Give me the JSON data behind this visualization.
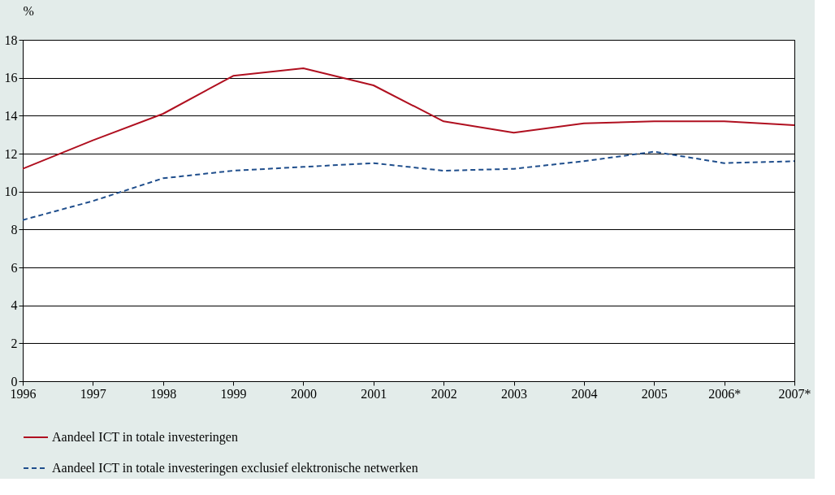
{
  "chart_data": {
    "type": "line",
    "ylabel": "%",
    "categories": [
      "1996",
      "1997",
      "1998",
      "1999",
      "2000",
      "2001",
      "2002",
      "2003",
      "2004",
      "2005",
      "2006*",
      "2007*"
    ],
    "series": [
      {
        "name": "Aandeel ICT in totale investeringen",
        "color": "#b01020",
        "line_style": "solid",
        "values": [
          11.2,
          12.7,
          14.1,
          16.1,
          16.5,
          15.6,
          13.7,
          13.1,
          13.6,
          13.7,
          13.7,
          13.5
        ]
      },
      {
        "name": "Aandeel ICT in totale investeringen exclusief elektronische netwerken",
        "color": "#1f4e8c",
        "line_style": "dashed",
        "values": [
          8.5,
          9.5,
          10.7,
          11.1,
          11.3,
          11.5,
          11.1,
          11.2,
          11.6,
          12.1,
          11.5,
          11.6
        ]
      }
    ],
    "ylim": [
      0,
      18
    ],
    "yticks": [
      0,
      2,
      4,
      6,
      8,
      10,
      12,
      14,
      16,
      18
    ],
    "grid": "y",
    "legend": "bottom",
    "marker": "none"
  }
}
